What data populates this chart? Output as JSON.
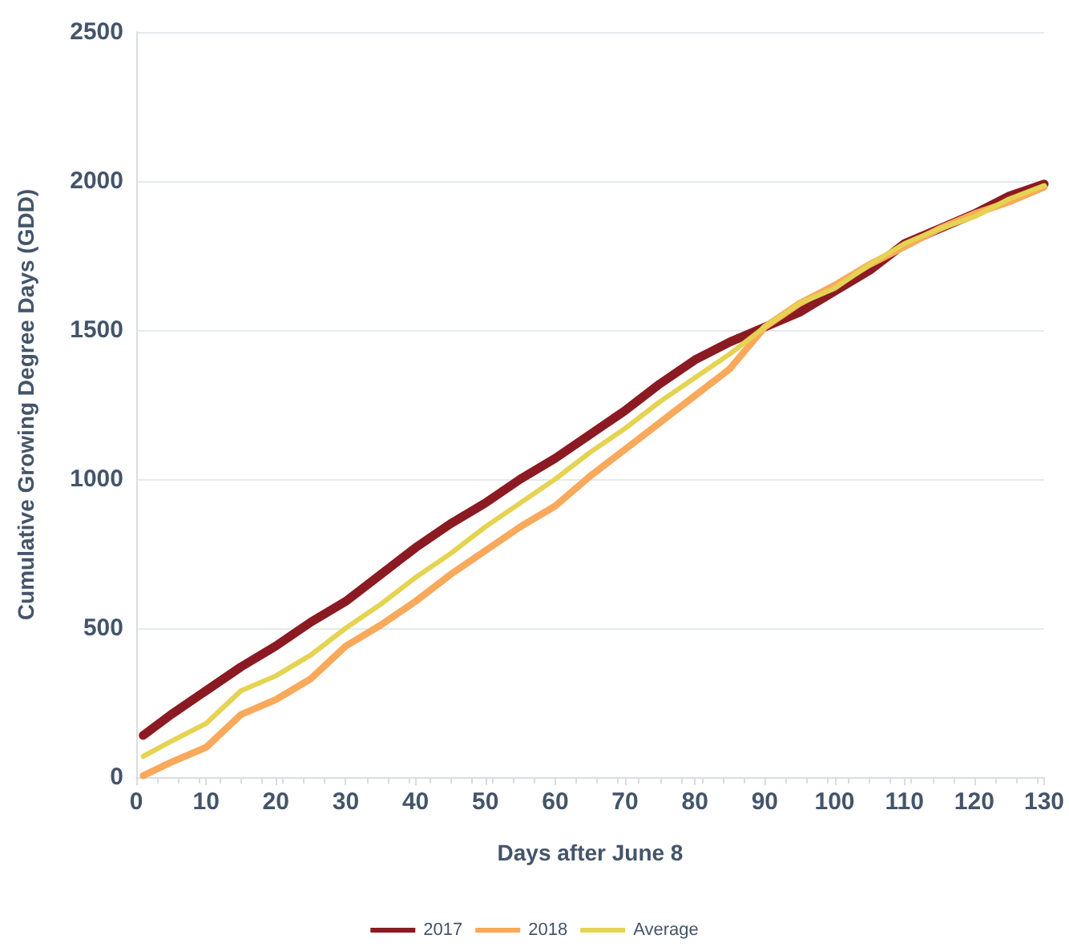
{
  "chart_data": {
    "type": "line",
    "xlabel": "Days after June 8",
    "ylabel": "Cumulative Growing Degree Days (GDD)",
    "x": [
      1,
      5,
      10,
      15,
      20,
      25,
      30,
      35,
      40,
      45,
      50,
      55,
      60,
      65,
      70,
      75,
      80,
      85,
      90,
      95,
      100,
      105,
      110,
      115,
      120,
      125,
      130
    ],
    "series": [
      {
        "name": "2017",
        "color": "#8b1a22",
        "values": [
          140,
          210,
          290,
          370,
          440,
          520,
          590,
          680,
          770,
          850,
          920,
          1000,
          1070,
          1150,
          1230,
          1320,
          1400,
          1460,
          1510,
          1560,
          1630,
          1700,
          1790,
          1840,
          1890,
          1950,
          1990
        ]
      },
      {
        "name": "2018",
        "color": "#f9a95b",
        "values": [
          5,
          50,
          100,
          210,
          260,
          330,
          440,
          510,
          590,
          680,
          760,
          840,
          910,
          1010,
          1100,
          1190,
          1280,
          1370,
          1510,
          1590,
          1650,
          1720,
          1780,
          1840,
          1890,
          1930,
          1980
        ]
      },
      {
        "name": "Average",
        "color": "#e5d352",
        "values": [
          70,
          120,
          180,
          290,
          340,
          410,
          500,
          580,
          670,
          750,
          840,
          920,
          1000,
          1090,
          1170,
          1260,
          1340,
          1420,
          1510,
          1590,
          1640,
          1720,
          1790,
          1840,
          1880,
          1940,
          1985
        ]
      }
    ],
    "xlim": [
      0,
      130
    ],
    "xticks": [
      0,
      10,
      20,
      30,
      40,
      50,
      60,
      70,
      80,
      90,
      100,
      110,
      120,
      130
    ],
    "ylim": [
      0,
      2500
    ],
    "yticks": [
      0,
      500,
      1000,
      1500,
      2000,
      2500
    ],
    "grid": "y",
    "legend": "bottom",
    "marker": "none",
    "line_style": "solid"
  }
}
